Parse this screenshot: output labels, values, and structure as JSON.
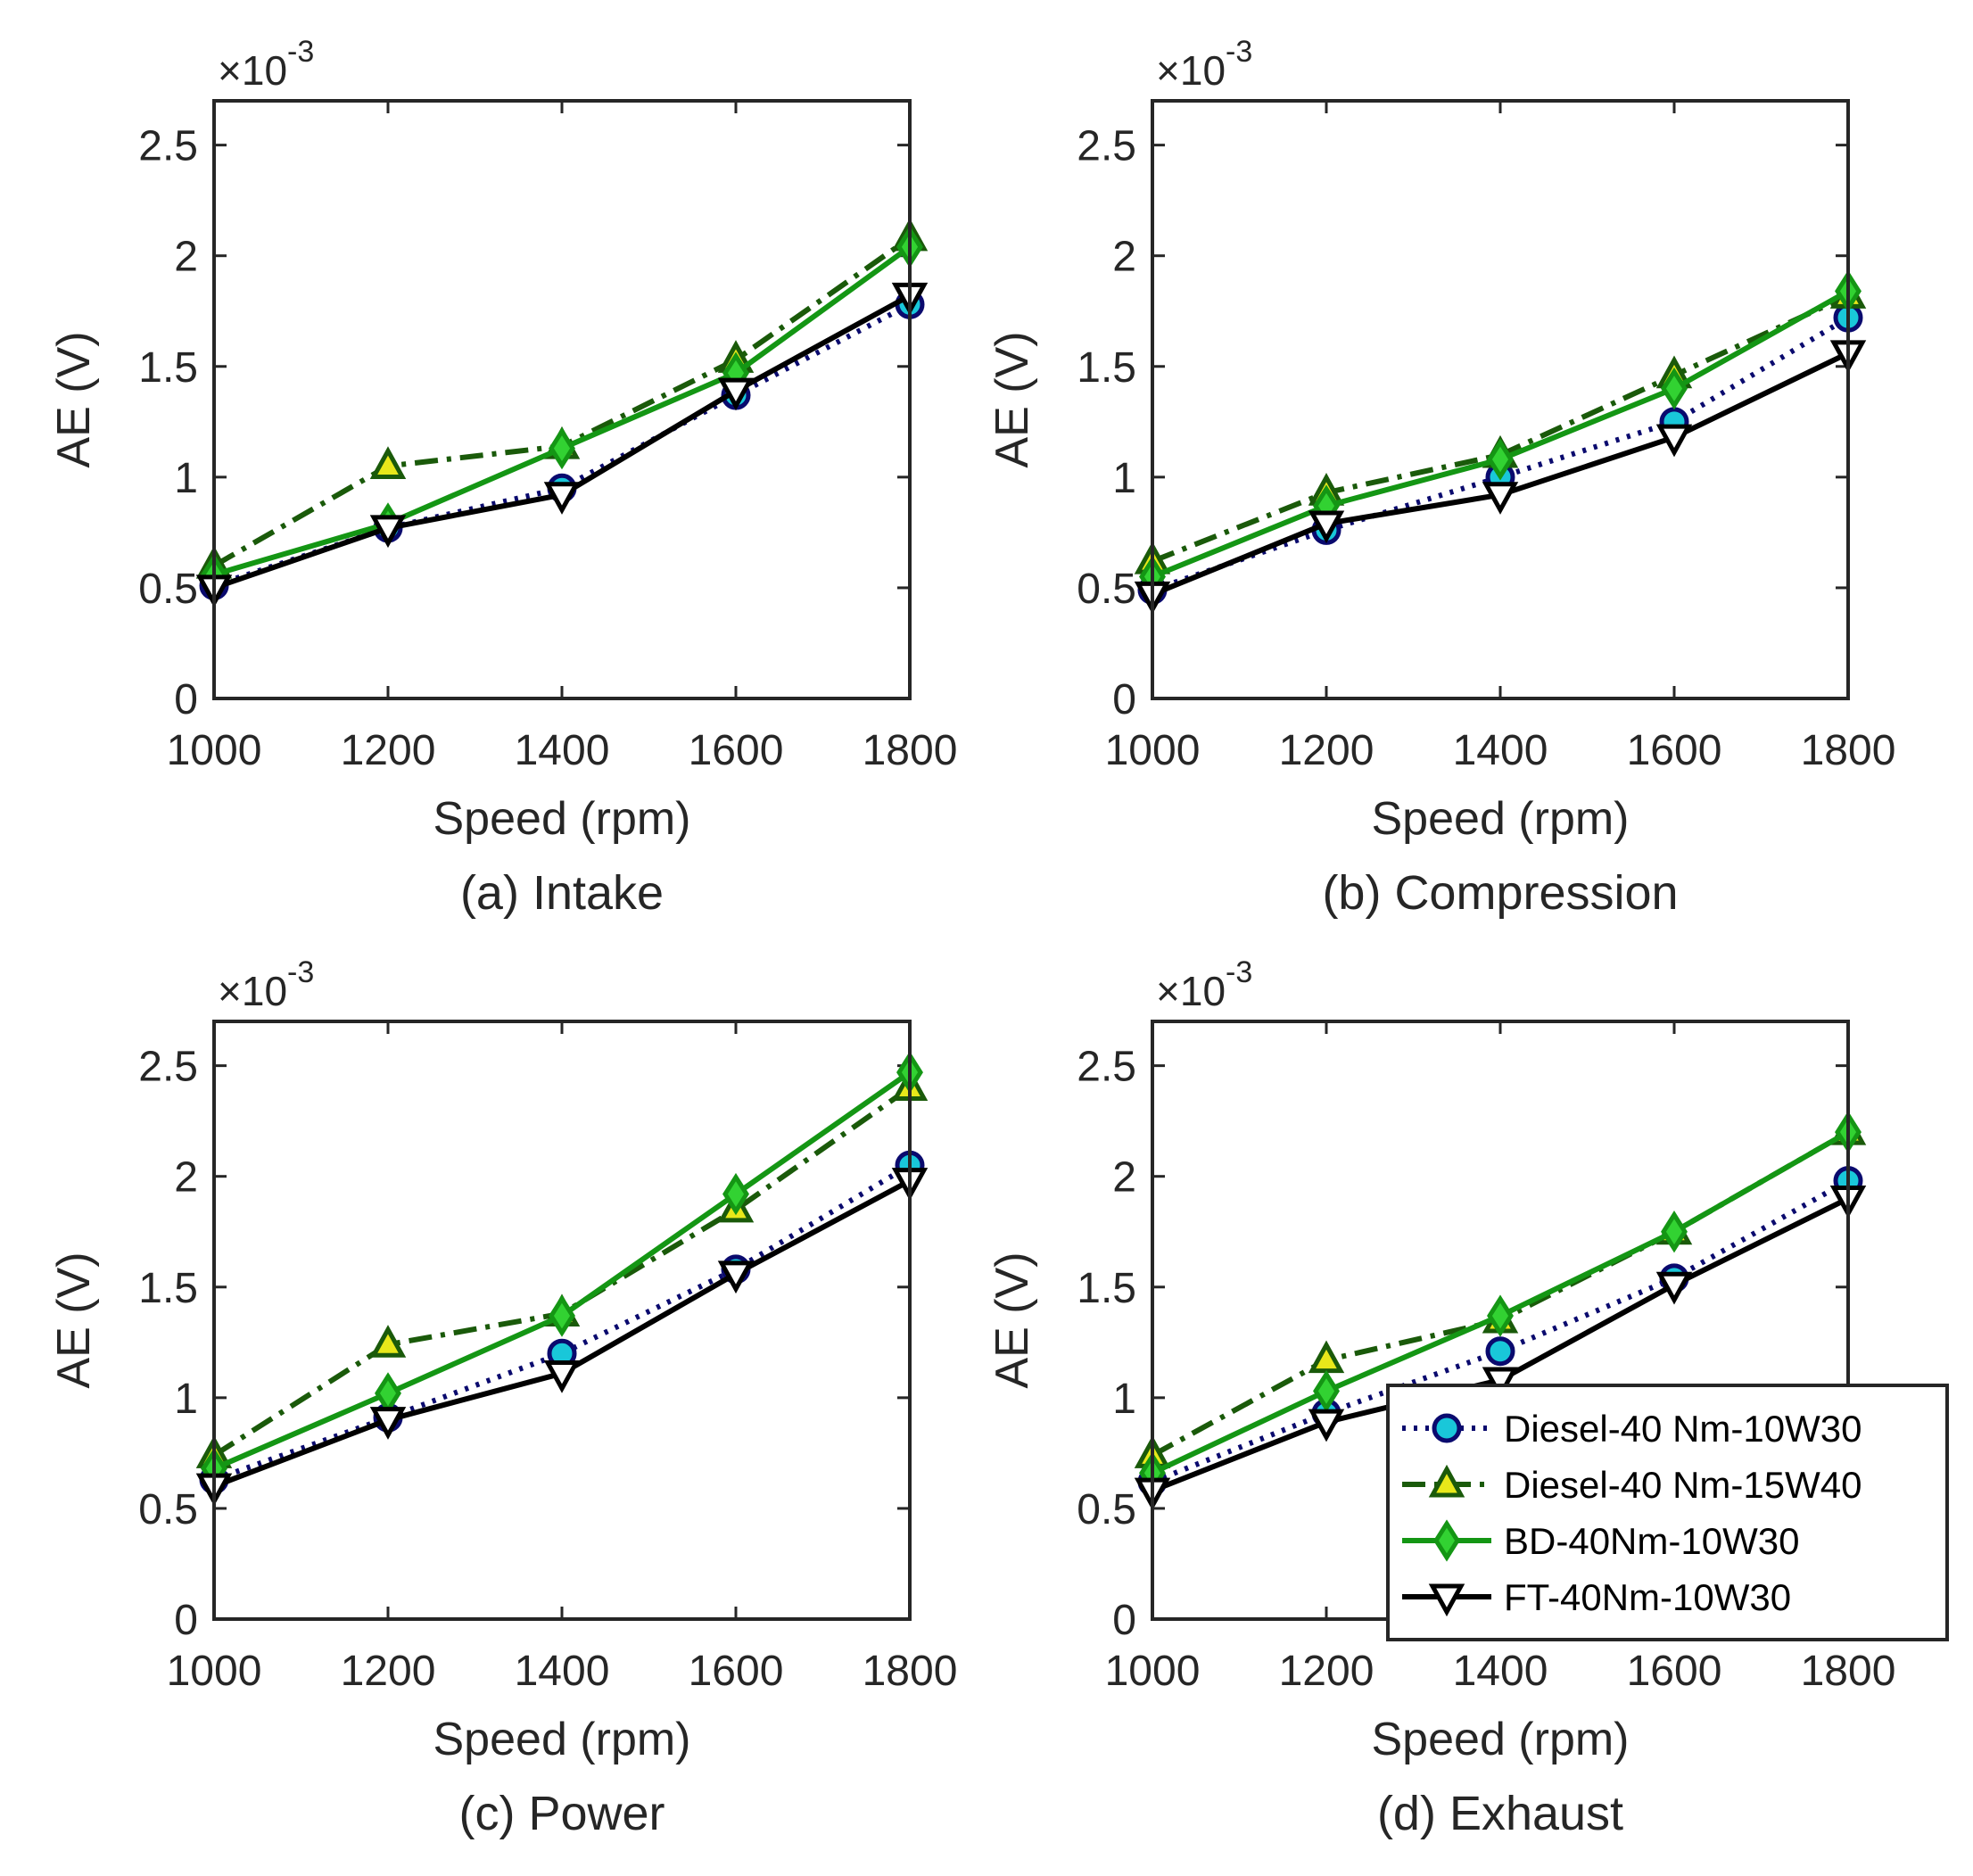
{
  "figure": {
    "legend": {
      "placement": "inside-lower-right of panel (d)",
      "entries": [
        {
          "label": "Diesel-40 Nm-10W30",
          "series_index": 0
        },
        {
          "label": "Diesel-40 Nm-15W40",
          "series_index": 1
        },
        {
          "label": "BD-40Nm-10W30",
          "series_index": 2
        },
        {
          "label": "FT-40Nm-10W30",
          "series_index": 3
        }
      ]
    },
    "series_styles": [
      {
        "name": "Diesel-40 Nm-10W30",
        "line_color": "#0a0a6e",
        "marker": "circle",
        "marker_fill": "#19c7d9",
        "marker_edge": "#0a0a6e",
        "dash": "dotted"
      },
      {
        "name": "Diesel-40 Nm-15W40",
        "line_color": "#1a5a0a",
        "marker": "triangle-up",
        "marker_fill": "#e8e81a",
        "marker_edge": "#1a5a0a",
        "dash": "dashdot"
      },
      {
        "name": "BD-40Nm-10W30",
        "line_color": "#149614",
        "marker": "diamond",
        "marker_fill": "#32d232",
        "marker_edge": "#149614",
        "dash": "solid"
      },
      {
        "name": "FT-40Nm-10W30",
        "line_color": "#000000",
        "marker": "triangle-down",
        "marker_fill": "#ffffff",
        "marker_edge": "#000000",
        "dash": "solid"
      }
    ]
  },
  "chart_data": [
    {
      "type": "line",
      "caption": "(a) Intake",
      "xlabel": "Speed (rpm)",
      "ylabel": "AE (V)",
      "y_exponent_base": "×10",
      "y_exponent_power": "-3",
      "x": [
        1000,
        1200,
        1400,
        1600,
        1800
      ],
      "xlim": [
        1000,
        1800
      ],
      "ylim": [
        0,
        2.7
      ],
      "x_ticks": [
        1000,
        1200,
        1400,
        1600,
        1800
      ],
      "x_tick_labels": [
        "1000",
        "1200",
        "1400",
        "1600",
        "1800"
      ],
      "y_ticks": [
        0,
        0.5,
        1,
        1.5,
        2,
        2.5
      ],
      "y_tick_labels": [
        "0",
        "0.5",
        "1",
        "1.5",
        "2",
        "2.5"
      ],
      "grid": false,
      "series": [
        {
          "name": "Diesel-40 Nm-10W30",
          "values": [
            0.51,
            0.77,
            0.95,
            1.37,
            1.78
          ]
        },
        {
          "name": "Diesel-40 Nm-15W40",
          "values": [
            0.6,
            1.05,
            1.14,
            1.53,
            2.08
          ]
        },
        {
          "name": "BD-40Nm-10W30",
          "values": [
            0.56,
            0.79,
            1.13,
            1.47,
            2.04
          ]
        },
        {
          "name": "FT-40Nm-10W30",
          "values": [
            0.5,
            0.77,
            0.92,
            1.39,
            1.82
          ]
        }
      ]
    },
    {
      "type": "line",
      "caption": "(b) Compression",
      "xlabel": "Speed (rpm)",
      "ylabel": "AE (V)",
      "y_exponent_base": "×10",
      "y_exponent_power": "-3",
      "x": [
        1000,
        1200,
        1400,
        1600,
        1800
      ],
      "xlim": [
        1000,
        1800
      ],
      "ylim": [
        0,
        2.7
      ],
      "x_ticks": [
        1000,
        1200,
        1400,
        1600,
        1800
      ],
      "x_tick_labels": [
        "1000",
        "1200",
        "1400",
        "1600",
        "1800"
      ],
      "y_ticks": [
        0,
        0.5,
        1,
        1.5,
        2,
        2.5
      ],
      "y_tick_labels": [
        "0",
        "0.5",
        "1",
        "1.5",
        "2",
        "2.5"
      ],
      "grid": false,
      "series": [
        {
          "name": "Diesel-40 Nm-10W30",
          "values": [
            0.49,
            0.76,
            1.0,
            1.25,
            1.72
          ]
        },
        {
          "name": "Diesel-40 Nm-15W40",
          "values": [
            0.62,
            0.93,
            1.1,
            1.46,
            1.82
          ]
        },
        {
          "name": "BD-40Nm-10W30",
          "values": [
            0.55,
            0.87,
            1.08,
            1.4,
            1.84
          ]
        },
        {
          "name": "FT-40Nm-10W30",
          "values": [
            0.47,
            0.79,
            0.92,
            1.18,
            1.56
          ]
        }
      ]
    },
    {
      "type": "line",
      "caption": "(c) Power",
      "xlabel": "Speed (rpm)",
      "ylabel": "AE (V)",
      "y_exponent_base": "×10",
      "y_exponent_power": "-3",
      "x": [
        1000,
        1200,
        1400,
        1600,
        1800
      ],
      "xlim": [
        1000,
        1800
      ],
      "ylim": [
        0,
        2.7
      ],
      "x_ticks": [
        1000,
        1200,
        1400,
        1600,
        1800
      ],
      "x_tick_labels": [
        "1000",
        "1200",
        "1400",
        "1600",
        "1800"
      ],
      "y_ticks": [
        0,
        0.5,
        1,
        1.5,
        2,
        2.5
      ],
      "y_tick_labels": [
        "0",
        "0.5",
        "1",
        "1.5",
        "2",
        "2.5"
      ],
      "grid": false,
      "series": [
        {
          "name": "Diesel-40 Nm-10W30",
          "values": [
            0.63,
            0.91,
            1.2,
            1.58,
            2.05
          ]
        },
        {
          "name": "Diesel-40 Nm-15W40",
          "values": [
            0.74,
            1.24,
            1.38,
            1.85,
            2.4
          ]
        },
        {
          "name": "BD-40Nm-10W30",
          "values": [
            0.68,
            1.02,
            1.37,
            1.92,
            2.47
          ]
        },
        {
          "name": "FT-40Nm-10W30",
          "values": [
            0.6,
            0.9,
            1.11,
            1.56,
            1.98
          ]
        }
      ]
    },
    {
      "type": "line",
      "caption": "(d) Exhaust",
      "xlabel": "Speed (rpm)",
      "ylabel": "AE (V)",
      "y_exponent_base": "×10",
      "y_exponent_power": "-3",
      "x": [
        1000,
        1200,
        1400,
        1600,
        1800
      ],
      "xlim": [
        1000,
        1800
      ],
      "ylim": [
        0,
        2.7
      ],
      "x_ticks": [
        1000,
        1200,
        1400,
        1600,
        1800
      ],
      "x_tick_labels": [
        "1000",
        "1200",
        "1400",
        "1600",
        "1800"
      ],
      "y_ticks": [
        0,
        0.5,
        1,
        1.5,
        2,
        2.5
      ],
      "y_tick_labels": [
        "0",
        "0.5",
        "1",
        "1.5",
        "2",
        "2.5"
      ],
      "grid": false,
      "series": [
        {
          "name": "Diesel-40 Nm-10W30",
          "values": [
            0.62,
            0.93,
            1.21,
            1.54,
            1.98
          ]
        },
        {
          "name": "Diesel-40 Nm-15W40",
          "values": [
            0.74,
            1.17,
            1.35,
            1.75,
            2.2
          ]
        },
        {
          "name": "BD-40Nm-10W30",
          "values": [
            0.66,
            1.03,
            1.37,
            1.75,
            2.2
          ]
        },
        {
          "name": "FT-40Nm-10W30",
          "values": [
            0.58,
            0.89,
            1.08,
            1.51,
            1.9
          ]
        }
      ]
    }
  ]
}
